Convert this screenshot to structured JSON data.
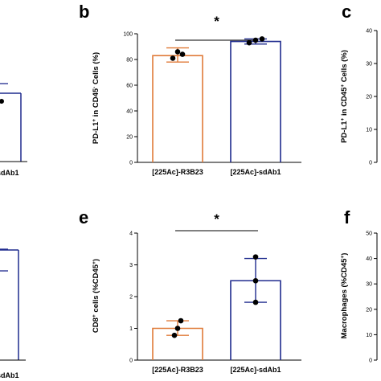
{
  "colors": {
    "series_a": "#e07b39",
    "series_b": "#1f2b8e",
    "axis": "#000000",
    "point": "#000000"
  },
  "labels": {
    "panel_b": "b",
    "panel_c": "c",
    "panel_e": "e",
    "panel_f": "f",
    "partial_left_top": "sdAb1",
    "partial_left_bottom": "sdAb1"
  },
  "chart_data": [
    {
      "panel": "b",
      "type": "bar",
      "categories": [
        "[225Ac]-R3B23",
        "[225Ac]-sdAb1"
      ],
      "ylabel": "PD-L1+ in CD45- Cells (%)",
      "ylim": [
        0,
        100
      ],
      "yticks": [
        0,
        20,
        40,
        60,
        80,
        100
      ],
      "values": [
        83,
        94
      ],
      "errors": [
        [
          78,
          89
        ],
        [
          92,
          96
        ]
      ],
      "points": [
        [
          81,
          84,
          86
        ],
        [
          93,
          95,
          96
        ]
      ],
      "significance": "*"
    },
    {
      "panel": "e",
      "type": "bar",
      "categories": [
        "[225Ac]-R3B23",
        "[225Ac]-sdAb1"
      ],
      "ylabel": "CD8+ cells (%CD45+)",
      "ylim": [
        0,
        4
      ],
      "yticks": [
        0,
        1,
        2,
        3,
        4
      ],
      "values": [
        1.0,
        2.5
      ],
      "errors": [
        [
          0.78,
          1.24
        ],
        [
          1.82,
          3.2
        ]
      ],
      "points": [
        [
          0.78,
          1.0,
          1.24
        ],
        [
          1.82,
          2.5,
          3.25
        ]
      ],
      "significance": "*"
    },
    {
      "panel": "c",
      "type": "bar",
      "ylabel": "PD-L1+ in CD45+ Cells (%)",
      "ylim": [
        0,
        40
      ],
      "yticks": [
        0,
        10,
        20,
        30,
        40
      ]
    },
    {
      "panel": "f",
      "type": "bar",
      "ylabel": "Macrophages (%CD45+)",
      "ylim": [
        0,
        50
      ],
      "yticks": [
        0,
        10,
        20,
        30,
        40,
        50
      ]
    }
  ]
}
